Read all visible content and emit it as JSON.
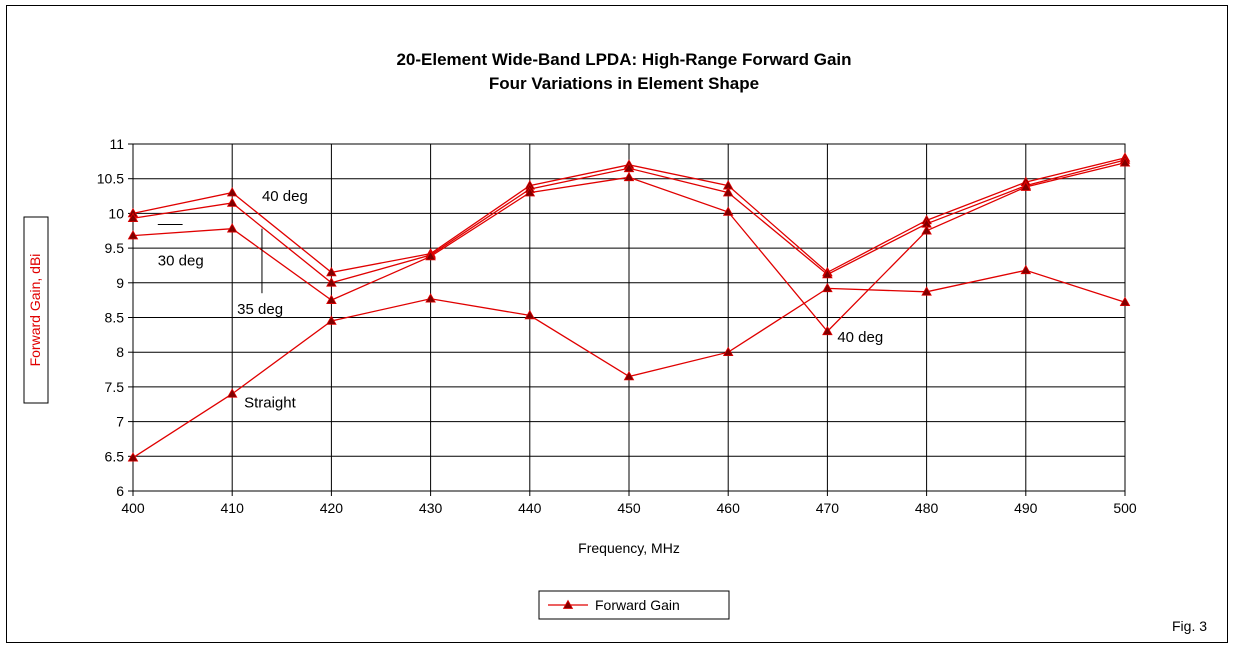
{
  "chart_data": {
    "type": "line",
    "title": "20-Element Wide-Band LPDA:  High-Range Forward Gain",
    "subtitle": "Four Variations in Element Shape",
    "xlabel": "Frequency, MHz",
    "ylabel": "Forward Gain,  dBi",
    "x": [
      400,
      410,
      420,
      430,
      440,
      450,
      460,
      470,
      480,
      490,
      500
    ],
    "xlim": [
      400,
      500
    ],
    "ylim": [
      6,
      11
    ],
    "yticks": [
      "6",
      "6.5",
      "7",
      "7.5",
      "8",
      "8.5",
      "9",
      "9.5",
      "10",
      "10.5",
      "11"
    ],
    "xticks": [
      "400",
      "410",
      "420",
      "430",
      "440",
      "450",
      "460",
      "470",
      "480",
      "490",
      "500"
    ],
    "grid": true,
    "line_color": "#e00000",
    "series": [
      {
        "values": [
          10.0,
          10.3,
          9.15,
          9.42,
          10.4,
          10.7,
          10.4,
          9.15,
          9.9,
          10.45,
          10.8
        ]
      },
      {
        "values": [
          9.93,
          10.15,
          9.0,
          9.4,
          10.35,
          10.65,
          10.3,
          9.12,
          9.85,
          10.4,
          10.77
        ]
      },
      {
        "values": [
          9.68,
          9.78,
          8.75,
          9.38,
          10.3,
          10.52,
          10.02,
          8.3,
          9.75,
          10.38,
          10.73
        ]
      },
      {
        "values": [
          6.48,
          7.4,
          8.45,
          8.77,
          8.53,
          7.65,
          8.0,
          8.92,
          8.87,
          9.18,
          8.72
        ]
      }
    ],
    "annotations": [
      {
        "text": "40 deg",
        "x": 413,
        "y": 10.18
      },
      {
        "text": "30 deg",
        "x": 402.5,
        "y": 9.25
      },
      {
        "text": "35 deg",
        "x": 410.5,
        "y": 8.55
      },
      {
        "text": "Straight",
        "x": 411.2,
        "y": 7.2
      },
      {
        "text": "40 deg",
        "x": 471,
        "y": 8.15
      }
    ],
    "legend": {
      "position": "bottom-center",
      "entry": "Forward Gain"
    },
    "figure_label": "Fig. 3"
  }
}
